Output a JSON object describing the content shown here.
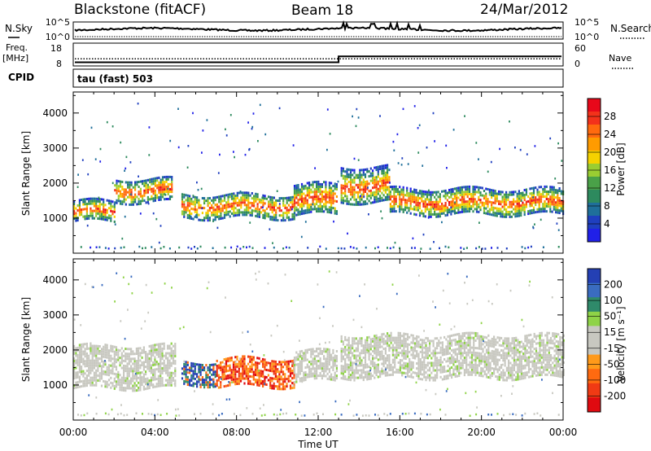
{
  "header": {
    "station": "Blackstone (fitACF)",
    "beam": "Beam 18",
    "date": "24/Mar/2012"
  },
  "ops": {
    "nsky_label": "N.Sky",
    "nsearch_label": "N.Search",
    "freq_label_1": "Freq.",
    "freq_label_2": "[MHz]",
    "nave_label": "Nave",
    "cpid_label": "CPID",
    "cpid_text": "tau (fast) 503",
    "noise_ticks": [
      "10^5",
      "10^0"
    ],
    "freq_ticks": [
      "18",
      "8"
    ],
    "nave_ticks": [
      "60",
      "0"
    ],
    "freq_step_hour": 13.0,
    "freq_before": 10.5,
    "freq_after": 14.5,
    "nave_value": 22
  },
  "chart_data": [
    {
      "type": "heatmap",
      "name": "power",
      "ylabel": "Slant Range [km]",
      "xlim": [
        0,
        24
      ],
      "ylim": [
        0,
        4600
      ],
      "yticks": [
        "4000",
        "3000",
        "2000",
        "1000"
      ],
      "colorbar_label": "Power [dB]",
      "colorbar_ticks": [
        "28",
        "24",
        "20",
        "16",
        "12",
        "8",
        "4"
      ],
      "bands": [
        {
          "x0": 0.0,
          "x1": 2.0,
          "r0": 950,
          "r1": 1550
        },
        {
          "x0": 2.0,
          "x1": 4.8,
          "r0": 1500,
          "r1": 2200
        },
        {
          "x0": 5.3,
          "x1": 10.8,
          "r0": 1050,
          "r1": 1750
        },
        {
          "x0": 10.8,
          "x1": 12.9,
          "r0": 1150,
          "r1": 2050
        },
        {
          "x0": 13.1,
          "x1": 15.5,
          "r0": 1500,
          "r1": 2500
        },
        {
          "x0": 15.5,
          "x1": 24.0,
          "r0": 1150,
          "r1": 1900
        }
      ]
    },
    {
      "type": "heatmap",
      "name": "velocity",
      "xlabel": "Time UT",
      "ylabel": "Slant Range [km]",
      "xlim": [
        0,
        24
      ],
      "ylim": [
        0,
        4600
      ],
      "xticks": [
        "00:00",
        "04:00",
        "08:00",
        "12:00",
        "16:00",
        "20:00",
        "00:00"
      ],
      "yticks": [
        "4000",
        "3000",
        "2000",
        "1000"
      ],
      "colorbar_label": "Velocity [m s⁻¹]",
      "colorbar_ticks": [
        "200",
        "100",
        "50",
        "15",
        "-15",
        "-50",
        "-100",
        "-200"
      ],
      "bands": [
        {
          "x0": 0.0,
          "x1": 5.0,
          "r0": 950,
          "r1": 2200,
          "v": "ground"
        },
        {
          "x0": 5.3,
          "x1": 7.0,
          "r0": 1050,
          "r1": 1750,
          "v": "mixed"
        },
        {
          "x0": 7.0,
          "x1": 10.8,
          "r0": 1000,
          "r1": 1800,
          "v": "negative"
        },
        {
          "x0": 10.8,
          "x1": 12.9,
          "r0": 1150,
          "r1": 2000,
          "v": "ground"
        },
        {
          "x0": 13.1,
          "x1": 24.0,
          "r0": 1250,
          "r1": 2500,
          "v": "ground"
        }
      ]
    }
  ],
  "colors": {
    "power_scale": [
      "#e8081a",
      "#f3321b",
      "#ff6a0e",
      "#ff9b00",
      "#f5d200",
      "#9acd32",
      "#4aa148",
      "#2d8a5e",
      "#1f6f9a",
      "#1f3fbf",
      "#2020e8"
    ],
    "velocity_scale": [
      "#2440b4",
      "#3a6cc0",
      "#2f8a6a",
      "#8fd347",
      "#c8c8c0",
      "#c8c8c0",
      "#ff9a1a",
      "#ff6a10",
      "#f03a14",
      "#e00a10"
    ]
  }
}
